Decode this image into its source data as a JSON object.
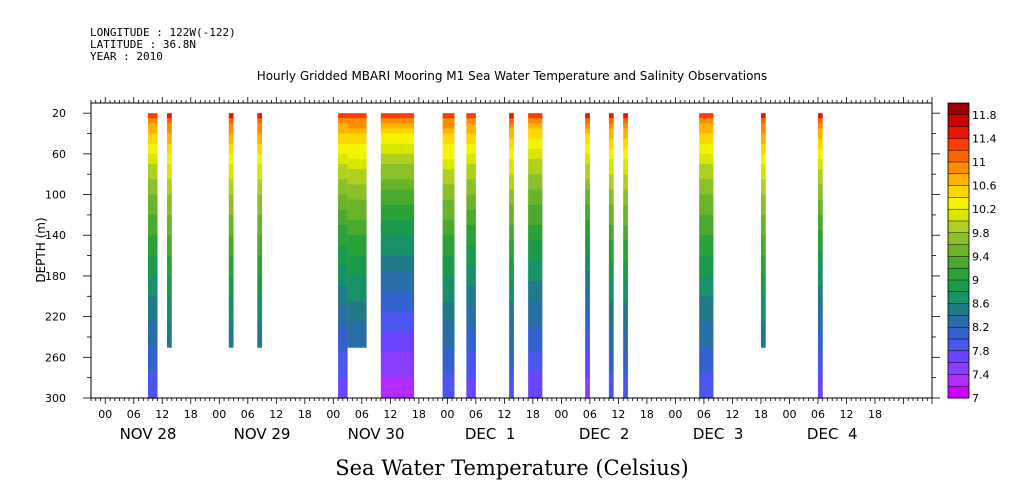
{
  "meta": {
    "longitude": "LONGITUDE : 122W(-122)",
    "latitude": "LATITUDE : 36.8N",
    "year": "YEAR : 2010"
  },
  "chart_data": {
    "type": "heatmap",
    "title": "Hourly Gridded MBARI Mooring M1 Sea Water Temperature and Salinity Observations",
    "xlabel_bottom": "Sea Water Temperature (Celsius)",
    "ylabel": "DEPTH (m)",
    "x_unit": "hours since 2010-11-27 21:00",
    "xlim": [
      0,
      177
    ],
    "ylim": [
      300,
      10
    ],
    "y_ticks": [
      20,
      60,
      100,
      140,
      180,
      220,
      260,
      300
    ],
    "x_tick_labels": [
      "00",
      "06",
      "12",
      "18",
      "00",
      "06",
      "12",
      "18",
      "00",
      "06",
      "12",
      "18",
      "00",
      "06",
      "12",
      "18",
      "00",
      "06",
      "12",
      "18",
      "00",
      "06",
      "12",
      "18",
      "00",
      "06",
      "12",
      "18"
    ],
    "day_labels": [
      "NOV 28",
      "NOV 29",
      "NOV 30",
      "DEC  1",
      "DEC  2",
      "DEC  3",
      "DEC  4"
    ],
    "colorbar": {
      "levels": [
        7.0,
        7.2,
        7.4,
        7.6,
        7.8,
        8.0,
        8.2,
        8.4,
        8.6,
        8.8,
        9.0,
        9.2,
        9.4,
        9.6,
        9.8,
        10.0,
        10.2,
        10.4,
        10.6,
        10.8,
        11.0,
        11.2,
        11.4,
        11.6,
        11.8,
        12.0
      ],
      "labels": [
        "11.8",
        "11.4",
        "11",
        "10.6",
        "10.2",
        "9.8",
        "9.4",
        "9",
        "8.6",
        "8.2",
        "7.8",
        "7.4",
        "7"
      ],
      "colors": [
        "#cc00ff",
        "#b02cff",
        "#8a3dff",
        "#6a44ff",
        "#4a56ee",
        "#3262cc",
        "#2a6ea8",
        "#207a88",
        "#189068",
        "#1a9a4a",
        "#2aa238",
        "#4aaa30",
        "#6ab42c",
        "#8cc02a",
        "#b0d020",
        "#d8e600",
        "#f4f400",
        "#fcd800",
        "#fcb400",
        "#fc8c00",
        "#fc6400",
        "#fc3c00",
        "#e81800",
        "#c80400",
        "#9c0000"
      ]
    },
    "columns": [
      {
        "x0": 12.0,
        "x1": 14.0,
        "bottom": 300,
        "surface_temp": 11.2,
        "bottom_temp": 7.8
      },
      {
        "x0": 16.0,
        "x1": 17.0,
        "bottom": 250,
        "surface_temp": 11.4,
        "bottom_temp": 8.0
      },
      {
        "x0": 29.0,
        "x1": 30.0,
        "bottom": 250,
        "surface_temp": 11.4,
        "bottom_temp": 8.0
      },
      {
        "x0": 35.0,
        "x1": 36.0,
        "bottom": 250,
        "surface_temp": 11.4,
        "bottom_temp": 8.0
      },
      {
        "x0": 52.0,
        "x1": 54.0,
        "bottom": 300,
        "surface_temp": 11.3,
        "bottom_temp": 7.6
      },
      {
        "x0": 54.0,
        "x1": 58.0,
        "bottom": 250,
        "surface_temp": 11.3,
        "bottom_temp": 7.8
      },
      {
        "x0": 61.0,
        "x1": 68.0,
        "bottom": 300,
        "surface_temp": 11.2,
        "bottom_temp": 7.2
      },
      {
        "x0": 74.0,
        "x1": 76.5,
        "bottom": 300,
        "surface_temp": 11.3,
        "bottom_temp": 7.8
      },
      {
        "x0": 79.0,
        "x1": 81.0,
        "bottom": 300,
        "surface_temp": 11.3,
        "bottom_temp": 7.6
      },
      {
        "x0": 88.0,
        "x1": 89.0,
        "bottom": 300,
        "surface_temp": 11.4,
        "bottom_temp": 7.8
      },
      {
        "x0": 92.0,
        "x1": 95.0,
        "bottom": 300,
        "surface_temp": 11.2,
        "bottom_temp": 7.6
      },
      {
        "x0": 104.0,
        "x1": 105.0,
        "bottom": 300,
        "surface_temp": 11.4,
        "bottom_temp": 7.4
      },
      {
        "x0": 109.0,
        "x1": 110.0,
        "bottom": 300,
        "surface_temp": 11.4,
        "bottom_temp": 7.8
      },
      {
        "x0": 112.0,
        "x1": 113.0,
        "bottom": 300,
        "surface_temp": 11.4,
        "bottom_temp": 7.8
      },
      {
        "x0": 128.0,
        "x1": 131.0,
        "bottom": 300,
        "surface_temp": 11.2,
        "bottom_temp": 7.8
      },
      {
        "x0": 141.0,
        "x1": 142.0,
        "bottom": 250,
        "surface_temp": 11.4,
        "bottom_temp": 8.0
      },
      {
        "x0": 153.0,
        "x1": 154.0,
        "bottom": 300,
        "surface_temp": 11.4,
        "bottom_temp": 7.6
      }
    ]
  }
}
